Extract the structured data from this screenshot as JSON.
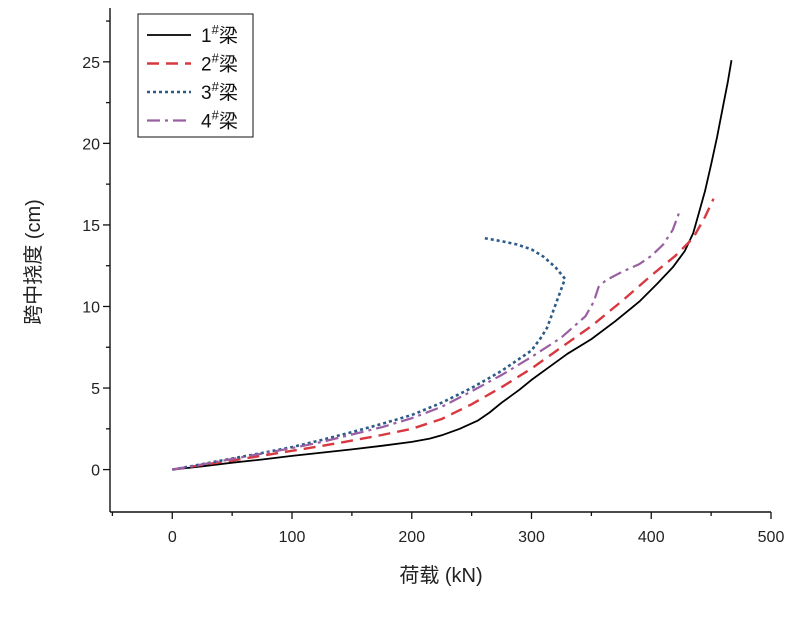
{
  "chart_data": {
    "type": "line",
    "xlabel": "荷载 (kN)",
    "ylabel": "跨中挠度 (cm)",
    "xlim": [
      -52,
      500
    ],
    "ylim": [
      -2.6,
      28.3
    ],
    "xticks": [
      0,
      100,
      200,
      300,
      400,
      500
    ],
    "yticks": [
      0,
      5,
      10,
      15,
      20,
      25
    ],
    "grid": false,
    "legend": "top-left",
    "series": [
      {
        "name": "1#梁",
        "color": "#000000",
        "style": "solid",
        "points": [
          [
            0,
            0
          ],
          [
            25,
            0.2
          ],
          [
            50,
            0.42
          ],
          [
            75,
            0.62
          ],
          [
            100,
            0.84
          ],
          [
            125,
            1.04
          ],
          [
            150,
            1.24
          ],
          [
            175,
            1.46
          ],
          [
            200,
            1.7
          ],
          [
            215,
            1.9
          ],
          [
            225,
            2.1
          ],
          [
            240,
            2.5
          ],
          [
            255,
            3.0
          ],
          [
            265,
            3.5
          ],
          [
            275,
            4.1
          ],
          [
            290,
            4.9
          ],
          [
            300,
            5.5
          ],
          [
            315,
            6.3
          ],
          [
            330,
            7.1
          ],
          [
            350,
            8.0
          ],
          [
            370,
            9.1
          ],
          [
            390,
            10.3
          ],
          [
            405,
            11.4
          ],
          [
            418,
            12.4
          ],
          [
            428,
            13.4
          ],
          [
            435,
            14.5
          ],
          [
            440,
            15.8
          ],
          [
            445,
            17.1
          ],
          [
            450,
            18.7
          ],
          [
            455,
            20.4
          ],
          [
            460,
            22.3
          ],
          [
            464,
            23.8
          ],
          [
            467,
            25.1
          ]
        ]
      },
      {
        "name": "2#梁",
        "color": "#d8383f",
        "style": "dashed",
        "points": [
          [
            0,
            0
          ],
          [
            25,
            0.28
          ],
          [
            50,
            0.55
          ],
          [
            75,
            0.85
          ],
          [
            100,
            1.15
          ],
          [
            125,
            1.45
          ],
          [
            150,
            1.78
          ],
          [
            175,
            2.12
          ],
          [
            200,
            2.5
          ],
          [
            225,
            3.1
          ],
          [
            250,
            4.0
          ],
          [
            275,
            5.05
          ],
          [
            300,
            6.2
          ],
          [
            325,
            7.5
          ],
          [
            350,
            8.8
          ],
          [
            375,
            10.3
          ],
          [
            400,
            11.9
          ],
          [
            420,
            13.1
          ],
          [
            435,
            14.2
          ],
          [
            445,
            15.5
          ],
          [
            452,
            16.6
          ]
        ]
      },
      {
        "name": "3#梁",
        "color": "#2c5b87",
        "style": "dotted",
        "points": [
          [
            0,
            0
          ],
          [
            25,
            0.33
          ],
          [
            50,
            0.68
          ],
          [
            75,
            1.02
          ],
          [
            100,
            1.38
          ],
          [
            125,
            1.82
          ],
          [
            150,
            2.3
          ],
          [
            175,
            2.8
          ],
          [
            200,
            3.35
          ],
          [
            225,
            4.1
          ],
          [
            250,
            5.0
          ],
          [
            275,
            6.05
          ],
          [
            300,
            7.3
          ],
          [
            308,
            8.1
          ],
          [
            313,
            8.7
          ],
          [
            328,
            11.7
          ],
          [
            320,
            12.4
          ],
          [
            310,
            13.05
          ],
          [
            300,
            13.5
          ],
          [
            288,
            13.8
          ],
          [
            275,
            14.0
          ],
          [
            260,
            14.2
          ]
        ]
      },
      {
        "name": "4#梁",
        "color": "#9a5fa3",
        "style": "dashdot",
        "points": [
          [
            0,
            0
          ],
          [
            25,
            0.32
          ],
          [
            50,
            0.65
          ],
          [
            75,
            0.98
          ],
          [
            100,
            1.32
          ],
          [
            125,
            1.7
          ],
          [
            150,
            2.15
          ],
          [
            175,
            2.6
          ],
          [
            200,
            3.15
          ],
          [
            225,
            3.85
          ],
          [
            250,
            4.8
          ],
          [
            275,
            5.8
          ],
          [
            300,
            6.9
          ],
          [
            325,
            8.1
          ],
          [
            345,
            9.4
          ],
          [
            352,
            10.3
          ],
          [
            356,
            11.2
          ],
          [
            362,
            11.6
          ],
          [
            375,
            12.1
          ],
          [
            390,
            12.6
          ],
          [
            400,
            13.1
          ],
          [
            410,
            13.8
          ],
          [
            418,
            14.7
          ],
          [
            423,
            15.7
          ]
        ]
      }
    ]
  }
}
